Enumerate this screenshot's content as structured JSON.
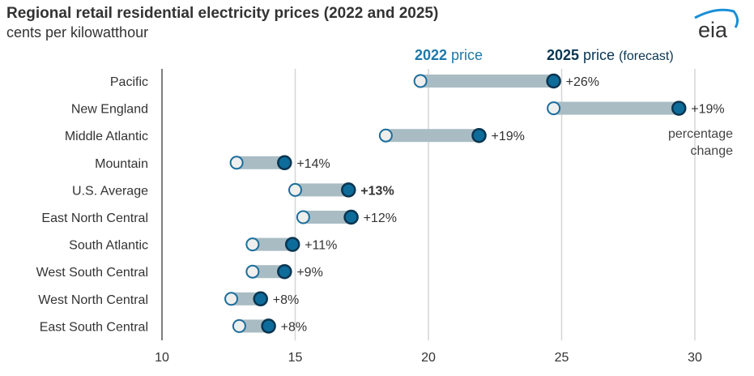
{
  "title": "Regional retail residential electricity prices (2022 and 2025)",
  "subtitle": "cents per kilowatthour",
  "logo_text": "eia",
  "chart_data": {
    "type": "dumbbell",
    "title": "Regional retail residential electricity prices (2022 and 2025)",
    "ylabel": "cents per kilowatthour",
    "xlim": [
      10,
      31
    ],
    "xticks": [
      10,
      15,
      20,
      25,
      30
    ],
    "grid": "vertical",
    "legend": {
      "start_bold": "2022",
      "start_rest": " price",
      "end_bold": "2025",
      "end_rest": " price",
      "end_note": "(forecast)",
      "change_note_1": "percentage",
      "change_note_2": "change"
    },
    "categories": [
      "Pacific",
      "New England",
      "Middle Atlantic",
      "Mountain",
      "U.S. Average",
      "East North Central",
      "South Atlantic",
      "West South Central",
      "West North Central",
      "East South Central"
    ],
    "series": [
      {
        "name": "2022 price",
        "values": [
          19.7,
          24.7,
          18.4,
          12.8,
          15.0,
          15.3,
          13.4,
          13.4,
          12.6,
          12.9
        ]
      },
      {
        "name": "2025 price (forecast)",
        "values": [
          24.7,
          29.4,
          21.9,
          14.6,
          17.0,
          17.1,
          14.9,
          14.6,
          13.7,
          14.0
        ]
      }
    ],
    "change_labels": [
      "+26%",
      "+19%",
      "+19%",
      "+14%",
      "+13%",
      "+12%",
      "+11%",
      "+9%",
      "+8%",
      "+8%"
    ],
    "highlight_category": "U.S. Average"
  },
  "colors": {
    "start_fill": "#efefef",
    "start_stroke": "#1b6e9c",
    "end_fill": "#0e6c9a",
    "end_stroke": "#0a3550",
    "bar": "#a9bcc4",
    "label_2022": "#1f78a9",
    "label_2025": "#0a3550",
    "logo_arc": "#1a8fd8"
  }
}
